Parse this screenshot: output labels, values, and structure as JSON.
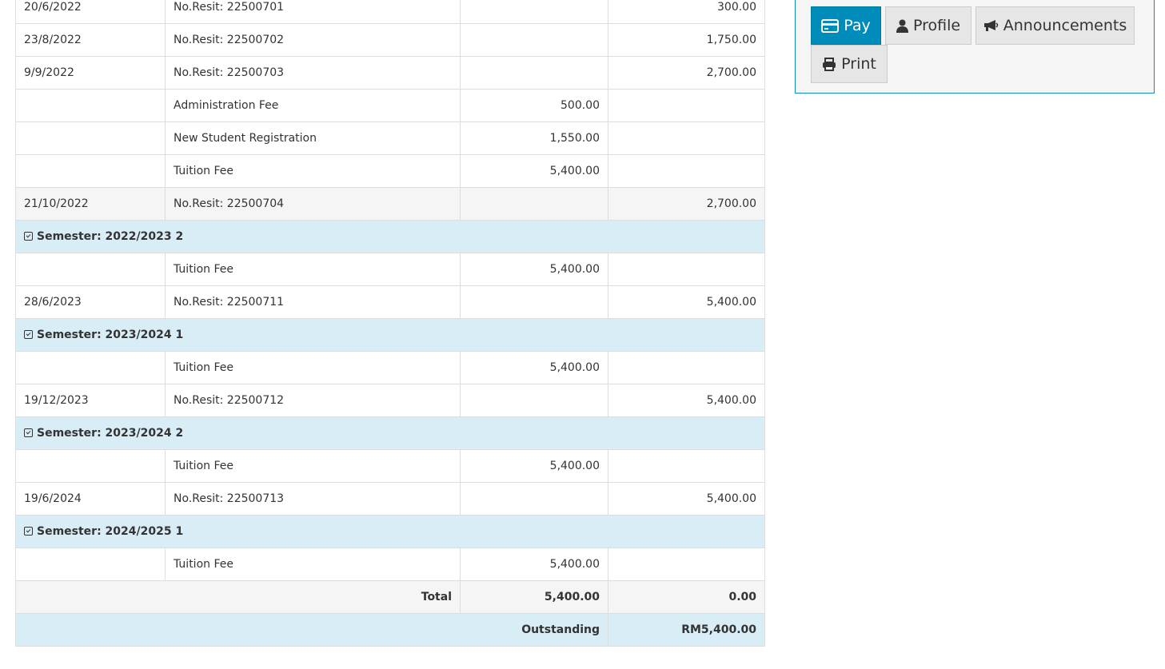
{
  "rows": [
    {
      "type": "data",
      "date": "20/6/2022",
      "desc": "No.Resit: 22500701",
      "debit": "",
      "credit": "300.00"
    },
    {
      "type": "data",
      "date": "23/8/2022",
      "desc": "No.Resit: 22500702",
      "debit": "",
      "credit": "1,750.00"
    },
    {
      "type": "data",
      "date": "9/9/2022",
      "desc": "No.Resit: 22500703",
      "debit": "",
      "credit": "2,700.00"
    },
    {
      "type": "data",
      "date": "",
      "desc": "Administration Fee",
      "debit": "500.00",
      "credit": ""
    },
    {
      "type": "data",
      "date": "",
      "desc": "New Student Registration",
      "debit": "1,550.00",
      "credit": ""
    },
    {
      "type": "data",
      "date": "",
      "desc": "Tuition Fee",
      "debit": "5,400.00",
      "credit": ""
    },
    {
      "type": "grey",
      "date": "21/10/2022",
      "desc": "No.Resit: 22500704",
      "debit": "",
      "credit": "2,700.00"
    },
    {
      "type": "sem",
      "label": "Semester: 2022/2023 2"
    },
    {
      "type": "data",
      "date": "",
      "desc": "Tuition Fee",
      "debit": "5,400.00",
      "credit": ""
    },
    {
      "type": "data",
      "date": "28/6/2023",
      "desc": "No.Resit: 22500711",
      "debit": "",
      "credit": "5,400.00"
    },
    {
      "type": "sem",
      "label": "Semester: 2023/2024 1"
    },
    {
      "type": "data",
      "date": "",
      "desc": "Tuition Fee",
      "debit": "5,400.00",
      "credit": ""
    },
    {
      "type": "data",
      "date": "19/12/2023",
      "desc": "No.Resit: 22500712",
      "debit": "",
      "credit": "5,400.00"
    },
    {
      "type": "sem",
      "label": "Semester: 2023/2024 2"
    },
    {
      "type": "data",
      "date": "",
      "desc": "Tuition Fee",
      "debit": "5,400.00",
      "credit": ""
    },
    {
      "type": "data",
      "date": "19/6/2024",
      "desc": "No.Resit: 22500713",
      "debit": "",
      "credit": "5,400.00"
    },
    {
      "type": "sem",
      "label": "Semester: 2024/2025 1"
    },
    {
      "type": "data",
      "date": "",
      "desc": "Tuition Fee",
      "debit": "5,400.00",
      "credit": ""
    }
  ],
  "total": {
    "label": "Total",
    "debit": "5,400.00",
    "credit": "0.00"
  },
  "outstanding": {
    "label": "Outstanding",
    "amount": "RM5,400.00"
  },
  "actions": {
    "pay": "Pay",
    "profile": "Profile",
    "announcements": "Announcements",
    "print": "Print",
    "pay_icon": "credit-card-icon",
    "profile_icon": "user-icon",
    "announcements_icon": "bullhorn-icon",
    "print_icon": "print-icon",
    "accent": "#008cba"
  }
}
